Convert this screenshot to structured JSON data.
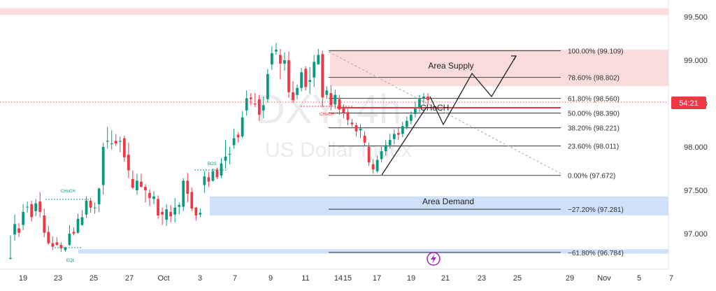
{
  "chart_data": {
    "type": "candlestick",
    "symbol": "DXY",
    "timeframe": "4h",
    "watermark_symbol": "DXY, 4h",
    "watermark_name": "US Dollar Index",
    "y_axis": {
      "ylim": [
        96.7,
        99.6
      ],
      "ticks": [
        "99.500",
        "99.000",
        "98.500",
        "98.000",
        "97.500",
        "97.000"
      ],
      "tick_values": [
        99.5,
        99.0,
        98.5,
        98.0,
        97.5,
        97.0
      ]
    },
    "x_axis": {
      "ticks": [
        "19",
        "23",
        "25",
        "27",
        "Oct",
        "3",
        "7",
        "9",
        "11",
        "14",
        "15",
        "17",
        "19",
        "21",
        "23",
        "25",
        "29",
        "Nov",
        "5",
        "7"
      ]
    },
    "price_label": "54:21",
    "price_level": 98.52,
    "candles": [
      [
        96.71,
        96.72,
        96.98,
        96.7
      ],
      [
        96.99,
        97.11,
        97.22,
        96.92
      ],
      [
        97.06,
        97.01,
        97.12,
        96.96
      ],
      [
        97.1,
        97.25,
        97.34,
        97.04
      ],
      [
        97.31,
        97.31,
        97.37,
        97.24
      ],
      [
        97.34,
        97.19,
        97.38,
        97.14
      ],
      [
        97.26,
        97.35,
        97.4,
        97.2
      ],
      [
        97.37,
        97.25,
        97.48,
        97.19
      ],
      [
        97.21,
        97.01,
        97.29,
        96.96
      ],
      [
        97.02,
        96.89,
        97.09,
        96.87
      ],
      [
        96.89,
        96.85,
        96.97,
        96.81
      ],
      [
        96.9,
        96.87,
        96.96,
        96.86
      ],
      [
        96.87,
        96.83,
        96.9,
        96.79
      ],
      [
        96.81,
        96.84,
        96.85,
        96.79
      ],
      [
        96.87,
        97.0,
        97.1,
        96.86
      ],
      [
        97.02,
        97.0,
        97.07,
        96.98
      ],
      [
        97.01,
        97.17,
        97.23,
        97.0
      ],
      [
        97.1,
        97.19,
        97.27,
        97.09
      ],
      [
        97.22,
        97.38,
        97.43,
        97.18
      ],
      [
        97.38,
        97.3,
        97.41,
        97.24
      ],
      [
        97.3,
        97.3,
        97.36,
        97.23
      ],
      [
        97.34,
        97.52,
        97.53,
        97.25
      ],
      [
        97.56,
        98.0,
        98.05,
        97.45
      ],
      [
        98.06,
        98.07,
        98.23,
        97.98
      ],
      [
        98.04,
        98.04,
        98.19,
        97.97
      ],
      [
        98.07,
        98.04,
        98.15,
        98.01
      ],
      [
        98.06,
        98.07,
        98.12,
        97.94
      ],
      [
        98.1,
        97.88,
        98.13,
        97.83
      ],
      [
        97.91,
        97.73,
        98.05,
        97.64
      ],
      [
        97.63,
        97.53,
        97.73,
        97.51
      ],
      [
        97.5,
        97.61,
        97.69,
        97.45
      ],
      [
        97.6,
        97.54,
        97.69,
        97.53
      ],
      [
        97.54,
        97.5,
        97.57,
        97.36
      ],
      [
        97.47,
        97.41,
        97.51,
        97.32
      ],
      [
        97.4,
        97.43,
        97.49,
        97.34
      ],
      [
        97.4,
        97.21,
        97.44,
        97.17
      ],
      [
        97.25,
        97.22,
        97.3,
        97.1
      ],
      [
        97.16,
        97.28,
        97.34,
        97.09
      ],
      [
        97.25,
        97.2,
        97.33,
        97.13
      ],
      [
        97.22,
        97.3,
        97.41,
        97.13
      ],
      [
        97.31,
        97.33,
        97.36,
        97.22
      ],
      [
        97.31,
        97.61,
        97.64,
        97.26
      ],
      [
        97.61,
        97.46,
        97.7,
        97.36
      ],
      [
        97.48,
        97.29,
        97.53,
        97.26
      ],
      [
        97.3,
        97.21,
        97.31,
        97.15
      ],
      [
        97.22,
        97.24,
        97.29,
        97.19
      ],
      [
        97.56,
        97.66,
        97.72,
        97.47
      ],
      [
        97.65,
        97.6,
        97.71,
        97.54
      ],
      [
        97.61,
        97.72,
        97.75,
        97.6
      ],
      [
        97.74,
        97.65,
        97.76,
        97.63
      ],
      [
        97.67,
        97.81,
        97.87,
        97.64
      ],
      [
        97.84,
        97.89,
        98.08,
        97.75
      ],
      [
        97.91,
        97.92,
        98.0,
        97.8
      ],
      [
        98.02,
        98.1,
        98.21,
        97.98
      ],
      [
        98.14,
        98.11,
        98.17,
        98.05
      ],
      [
        98.12,
        98.34,
        98.41,
        98.1
      ],
      [
        98.42,
        98.56,
        98.65,
        98.36
      ],
      [
        98.57,
        98.55,
        98.62,
        98.48
      ],
      [
        98.5,
        98.49,
        98.62,
        98.46
      ],
      [
        98.55,
        98.37,
        98.6,
        98.3
      ],
      [
        98.42,
        98.48,
        98.58,
        98.33
      ],
      [
        98.55,
        98.84,
        98.9,
        98.51
      ],
      [
        98.95,
        99.08,
        99.16,
        98.89
      ],
      [
        99.1,
        99.12,
        99.2,
        99.06
      ],
      [
        99.06,
        98.96,
        99.13,
        98.78
      ],
      [
        98.96,
        99.0,
        99.09,
        98.88
      ],
      [
        99.0,
        98.63,
        99.1,
        98.57
      ],
      [
        98.63,
        98.54,
        98.76,
        98.51
      ],
      [
        98.6,
        98.68,
        98.72,
        98.55
      ],
      [
        98.68,
        98.86,
        98.91,
        98.64
      ],
      [
        98.9,
        98.69,
        98.93,
        98.65
      ],
      [
        98.75,
        98.77,
        98.92,
        98.61
      ],
      [
        98.8,
        98.98,
        99.06,
        98.69
      ],
      [
        98.95,
        99.06,
        99.13,
        98.96
      ],
      [
        99.07,
        98.57,
        99.11,
        98.46
      ],
      [
        98.6,
        98.65,
        98.7,
        98.55
      ],
      [
        98.62,
        98.48,
        98.71,
        98.42
      ],
      [
        98.49,
        98.6,
        98.66,
        98.44
      ],
      [
        98.55,
        98.43,
        98.6,
        98.37
      ],
      [
        98.45,
        98.39,
        98.49,
        98.33
      ],
      [
        98.4,
        98.31,
        98.44,
        98.25
      ],
      [
        98.28,
        98.26,
        98.32,
        98.23
      ],
      [
        98.25,
        98.18,
        98.28,
        98.12
      ],
      [
        98.19,
        98.21,
        98.26,
        98.1
      ],
      [
        98.13,
        98.05,
        98.18,
        98.01
      ],
      [
        98.0,
        97.82,
        98.05,
        97.78
      ],
      [
        97.8,
        97.74,
        97.86,
        97.69
      ],
      [
        97.72,
        97.85,
        97.9,
        97.7
      ],
      [
        97.86,
        97.95,
        98.0,
        97.82
      ],
      [
        97.95,
        98.02,
        98.08,
        97.9
      ],
      [
        98.02,
        98.08,
        98.15,
        97.98
      ],
      [
        98.09,
        98.15,
        98.2,
        98.03
      ],
      [
        98.16,
        98.14,
        98.22,
        98.08
      ],
      [
        98.15,
        98.24,
        98.29,
        98.11
      ],
      [
        98.23,
        98.3,
        98.35,
        98.2
      ],
      [
        98.3,
        98.37,
        98.41,
        98.26
      ],
      [
        98.38,
        98.45,
        98.52,
        98.34
      ],
      [
        98.45,
        98.56,
        98.6,
        98.4
      ],
      [
        98.56,
        98.58,
        98.62,
        98.5
      ],
      [
        98.58,
        98.54,
        98.62,
        98.48
      ]
    ],
    "fibonacci": {
      "label_100": "100.00% (99.109)",
      "label_786": "78.60% (98.802)",
      "label_618": "61.80% (98.560)",
      "label_500": "50.00% (98.390)",
      "label_382": "38.20% (98.221)",
      "label_236": "23.60% (98.011)",
      "label_0": "0.00% (97.672)",
      "label_m272": "−27.20% (97.281)",
      "label_m618": "−61.80% (96.784)",
      "levels": [
        {
          "key": "label_100",
          "value": 99.109
        },
        {
          "key": "label_786",
          "value": 98.802
        },
        {
          "key": "label_618",
          "value": 98.56
        },
        {
          "key": "label_500",
          "value": 98.39
        },
        {
          "key": "label_382",
          "value": 98.221
        },
        {
          "key": "label_236",
          "value": 98.011
        },
        {
          "key": "label_0",
          "value": 97.672
        },
        {
          "key": "label_m272",
          "value": 97.281
        },
        {
          "key": "label_m618",
          "value": 96.784
        }
      ]
    },
    "zones": {
      "supply_label": "Area Supply",
      "demand_label": "Area Demand",
      "supply_range": [
        98.7,
        99.12
      ],
      "demand_range": [
        97.21,
        97.43
      ],
      "top_band_range": [
        99.52,
        99.6
      ],
      "bottom_band_range": [
        96.77,
        96.82
      ]
    },
    "annotations": {
      "choch_main": "CHoCH",
      "choch_small_1": "CHoCH",
      "choch_small_2": "CHoCH",
      "bos": "BOS",
      "eql": "EQL"
    },
    "colors": {
      "bull": "#089981",
      "bear": "#f23645",
      "supply": "#fbdcdc",
      "demand": "#cfe0fb",
      "fib_line": "#555555",
      "price_tag": "#f23645"
    }
  }
}
